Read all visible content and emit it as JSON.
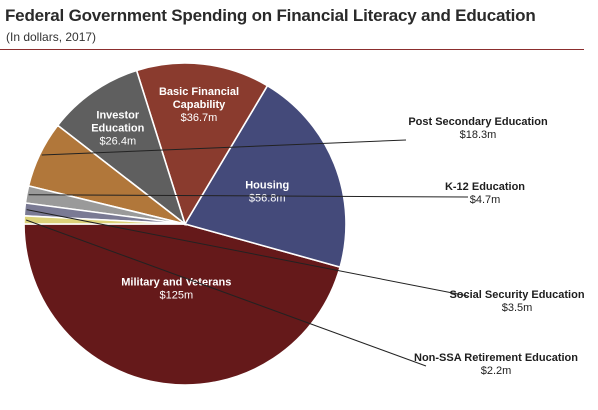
{
  "header": {
    "title": "Federal Government Spending on Financial Literacy and Education",
    "subtitle": "(In dollars, 2017)"
  },
  "chart_data": {
    "type": "pie",
    "title": "Federal Government Spending on Financial Literacy and Education",
    "subtitle": "(In dollars, 2017)",
    "unit": "millions of dollars",
    "slices": [
      {
        "label": "Military and Veterans",
        "value": 125,
        "display": "$125m",
        "color": "#65191a"
      },
      {
        "label": "Housing",
        "value": 56.8,
        "display": "$56.8m",
        "color": "#444a7a"
      },
      {
        "label": "Basic Financial Capability",
        "value": 36.7,
        "display": "$36.7m",
        "color": "#8a3b2e"
      },
      {
        "label": "Investor Education",
        "value": 26.4,
        "display": "$26.4m",
        "color": "#5f5f5f"
      },
      {
        "label": "Post Secondary Education",
        "value": 18.3,
        "display": "$18.3m",
        "color": "#b1773a"
      },
      {
        "label": "K-12 Education",
        "value": 4.7,
        "display": "$4.7m",
        "color": "#9a9a9a"
      },
      {
        "label": "Social Security Education",
        "value": 3.5,
        "display": "$3.5m",
        "color": "#7a7a94"
      },
      {
        "label": "Non-SSA Retirement Education",
        "value": 2.2,
        "display": "$2.2m",
        "color": "#dcd27a"
      }
    ],
    "label_lines": {
      "Basic Financial Capability": [
        "Basic Financial",
        "Capability"
      ],
      "Investor Education": [
        "Investor",
        "Education"
      ]
    },
    "legend": "none"
  }
}
